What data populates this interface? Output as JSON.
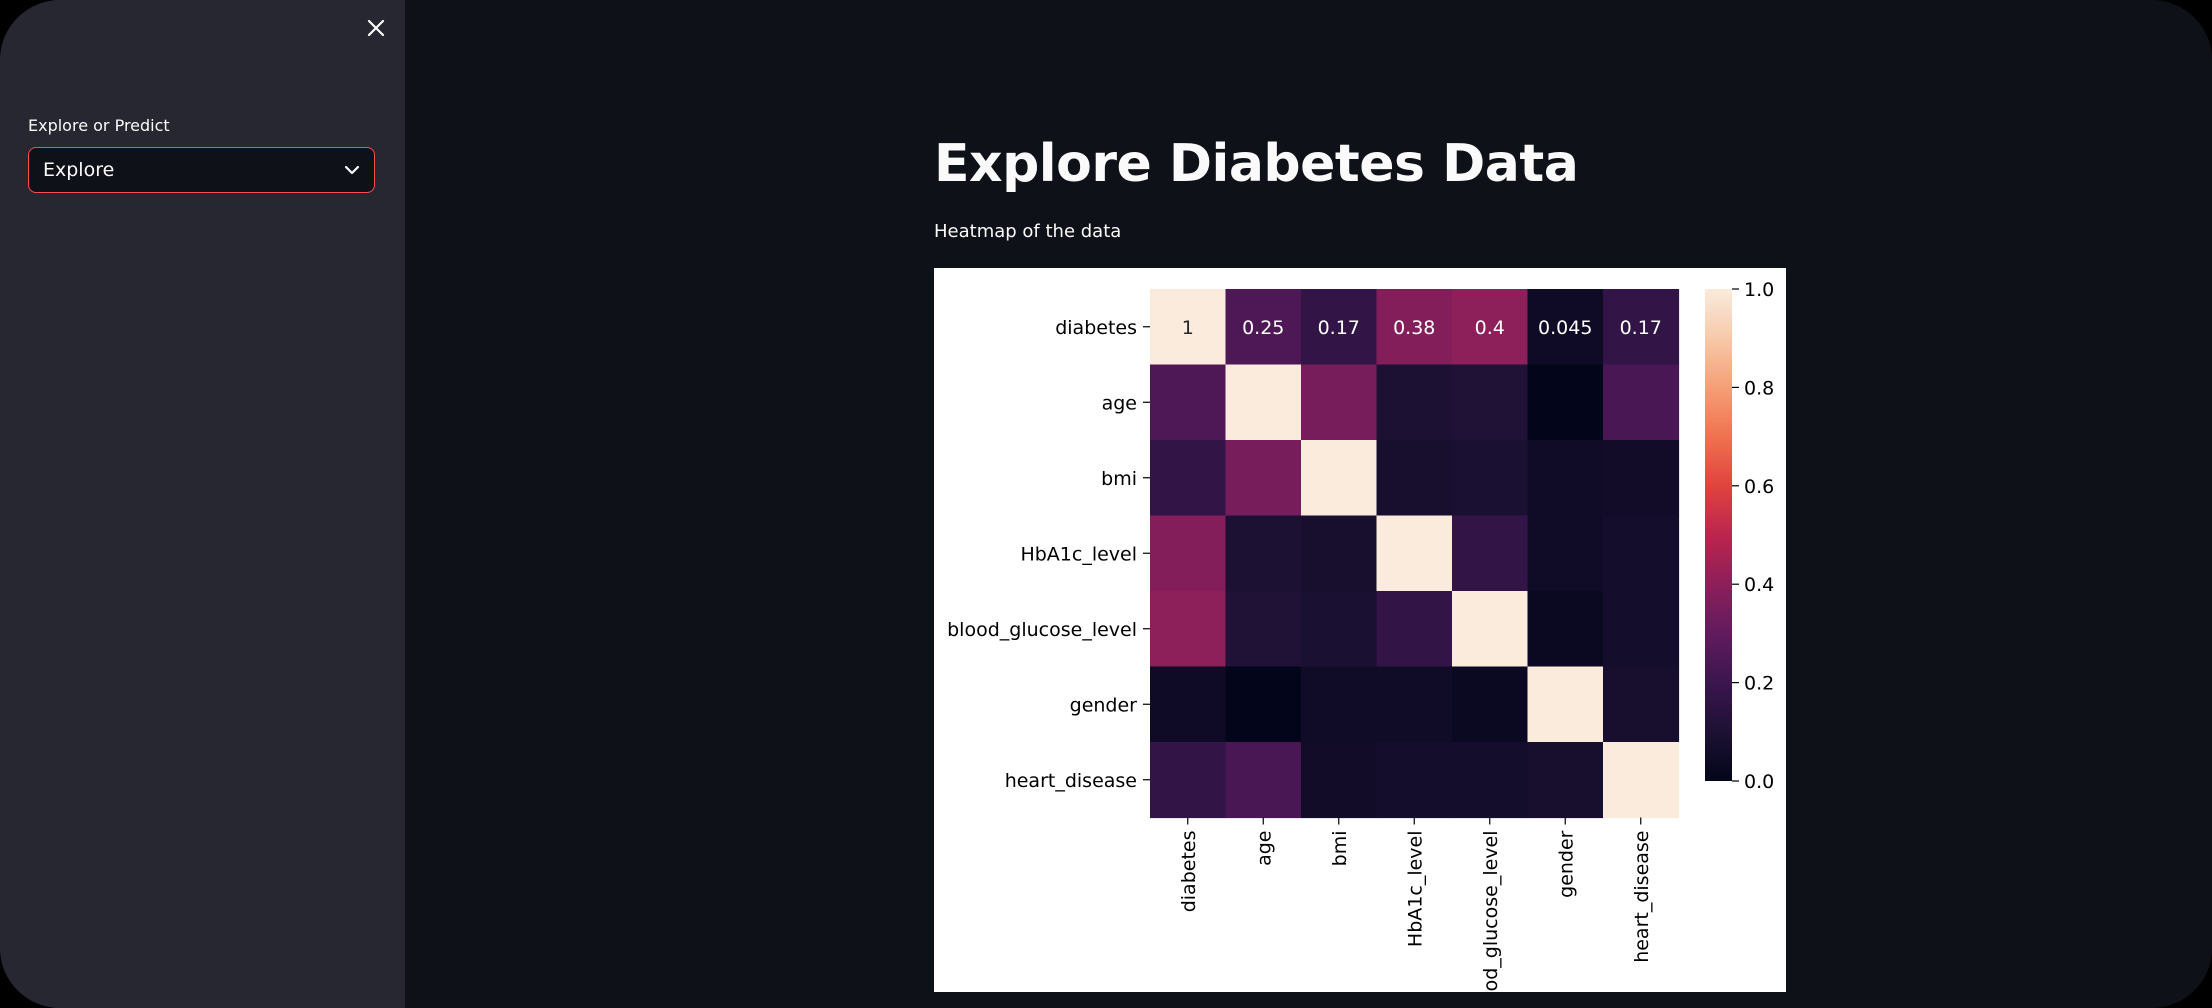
{
  "sidebar": {
    "close_icon": "close-icon",
    "select_label": "Explore or Predict",
    "select_value": "Explore",
    "select_icon": "chevron-down-icon"
  },
  "main": {
    "title": "Explore Diabetes Data",
    "subtitle": "Heatmap of the data"
  },
  "colors": {
    "app_background": "#0e1117",
    "sidebar_background": "#262730",
    "select_border": "#ff4b4b",
    "text": "#fafafa"
  },
  "chart_data": {
    "type": "heatmap",
    "colormap": "rocket",
    "x_labels": [
      "diabetes",
      "age",
      "bmi",
      "HbA1c_level",
      "blood_glucose_level",
      "gender",
      "heart_disease"
    ],
    "y_labels": [
      "diabetes",
      "age",
      "bmi",
      "HbA1c_level",
      "blood_glucose_level",
      "gender",
      "heart_disease"
    ],
    "values": [
      [
        1,
        0.25,
        0.17,
        0.38,
        0.4,
        0.045,
        0.17
      ],
      [
        0.25,
        1,
        0.35,
        0.1,
        0.11,
        -0.01,
        0.24
      ],
      [
        0.17,
        0.35,
        1,
        0.08,
        0.09,
        0.05,
        0.06
      ],
      [
        0.38,
        0.1,
        0.08,
        1,
        0.17,
        0.05,
        0.07
      ],
      [
        0.4,
        0.11,
        0.09,
        0.17,
        1,
        0.03,
        0.07
      ],
      [
        0.045,
        -0.01,
        0.05,
        0.05,
        0.03,
        1,
        0.08
      ],
      [
        0.17,
        0.24,
        0.06,
        0.07,
        0.07,
        0.08,
        1
      ]
    ],
    "annotated_row": 0,
    "annotations": [
      "1",
      "0.25",
      "0.17",
      "0.38",
      "0.4",
      "0.045",
      "0.17"
    ],
    "colorbar": {
      "range": [
        0.0,
        1.0
      ],
      "ticks": [
        "0.0",
        "0.2",
        "0.4",
        "0.6",
        "0.8",
        "1.0"
      ]
    }
  }
}
